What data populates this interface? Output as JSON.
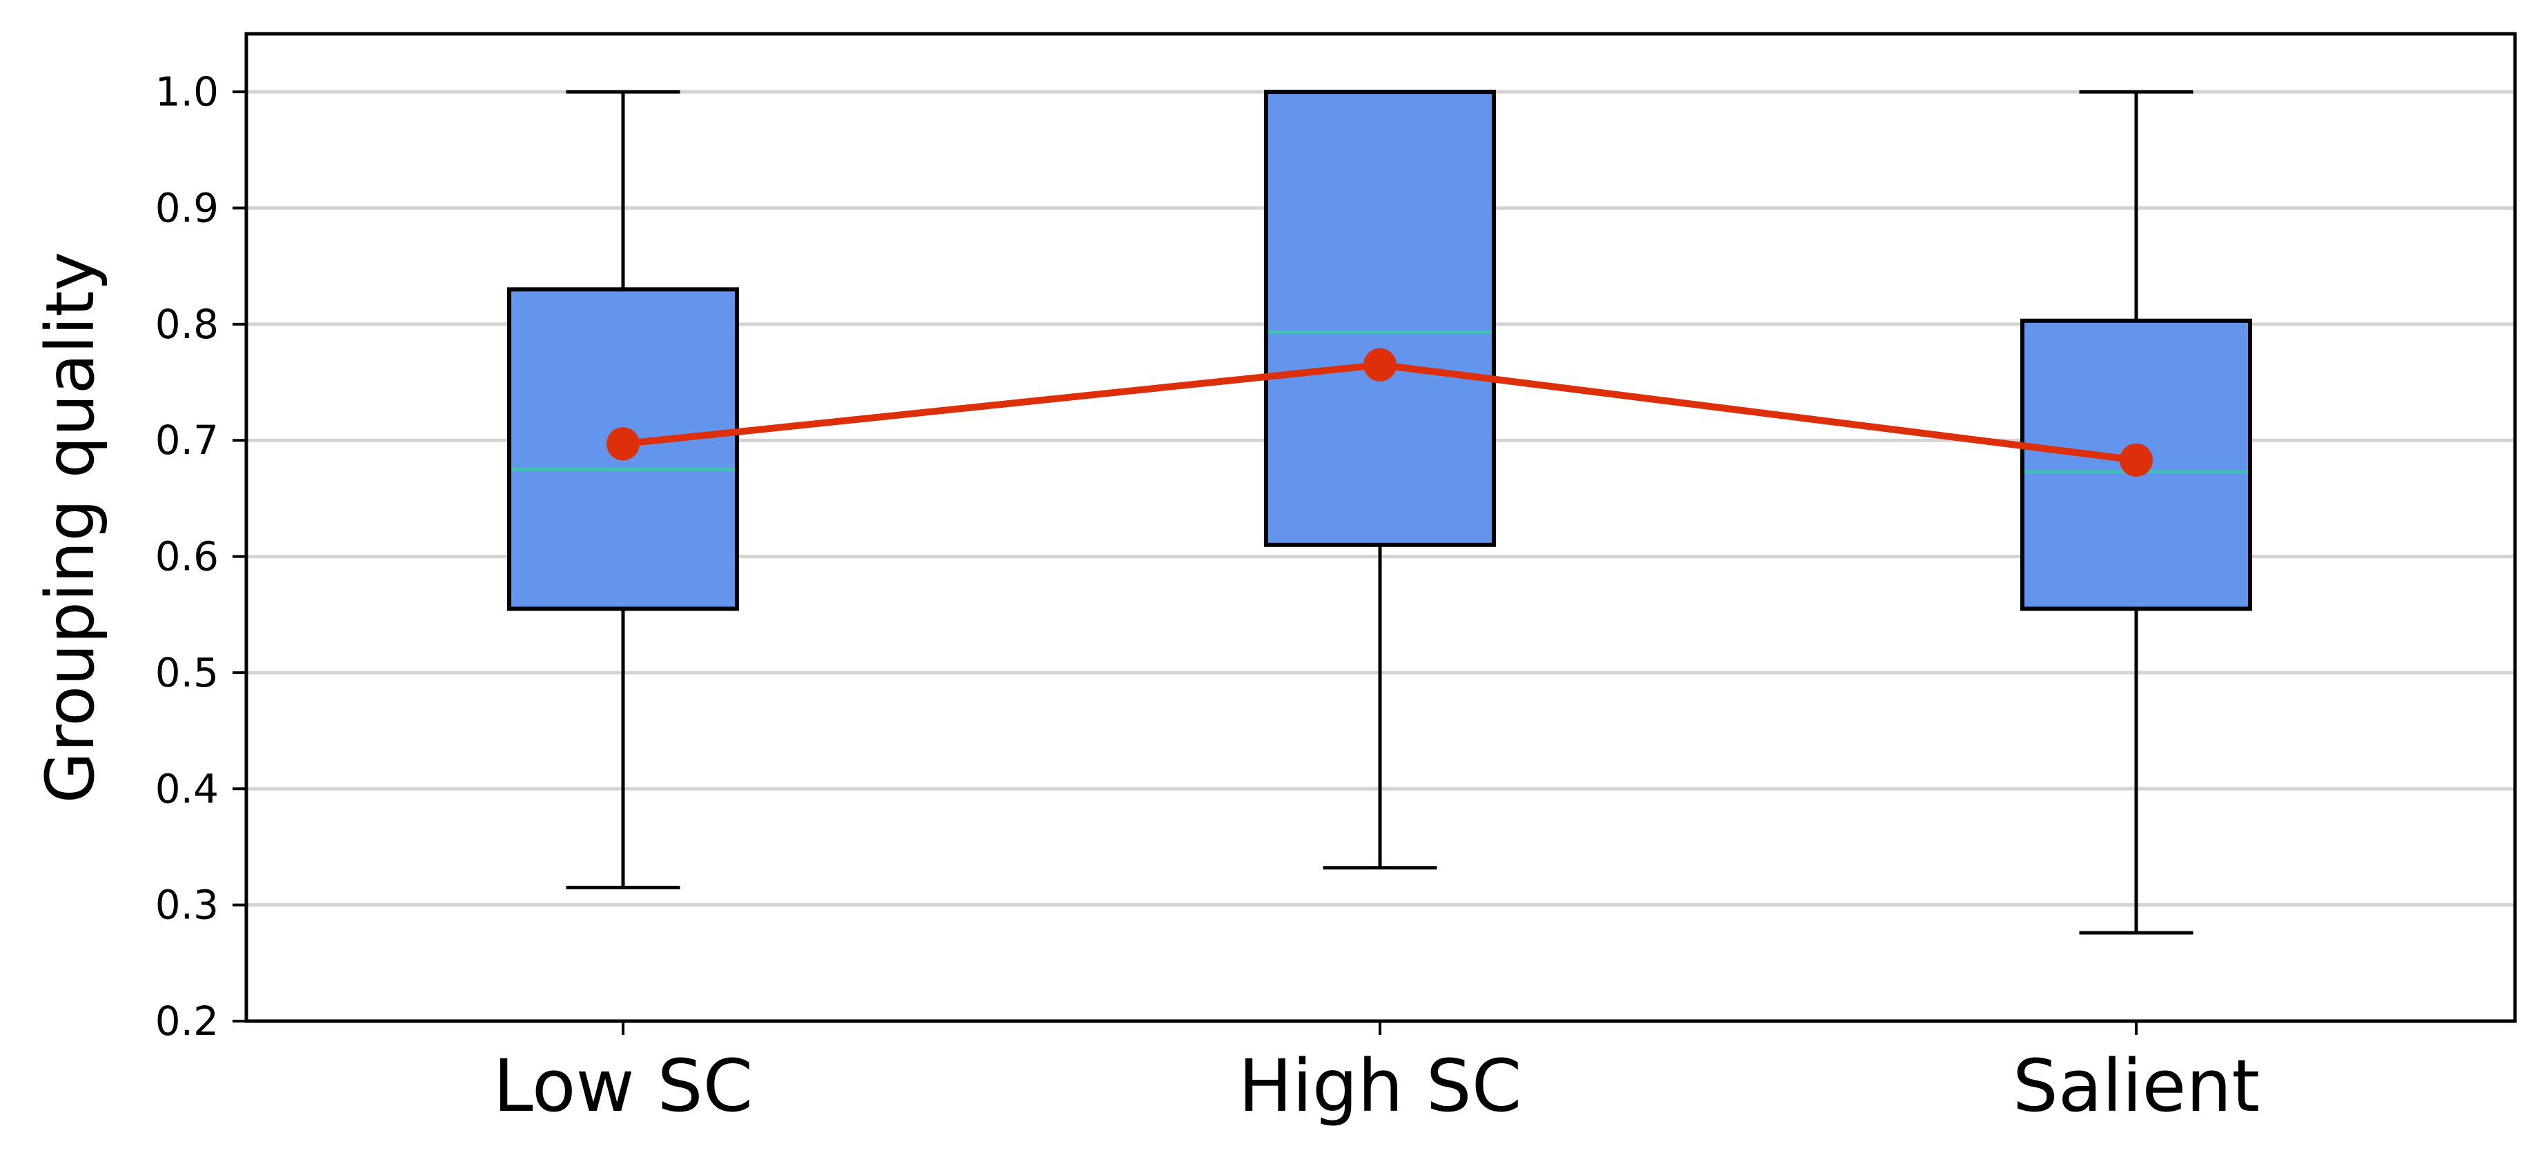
{
  "chart_data": {
    "type": "box",
    "title": "",
    "xlabel": "",
    "ylabel": "Grouping quality",
    "ylim": [
      0.2,
      1.05
    ],
    "yticks": [
      0.2,
      0.3,
      0.4,
      0.5,
      0.6,
      0.7,
      0.8,
      0.9,
      1.0
    ],
    "ytick_labels": [
      "0.2",
      "0.3",
      "0.4",
      "0.5",
      "0.6",
      "0.7",
      "0.8",
      "0.9",
      "1.0"
    ],
    "grid": "horizontal",
    "legend": "none",
    "categories": [
      "Low SC",
      "High SC",
      "Salient"
    ],
    "boxes": [
      {
        "whisker_low": 0.315,
        "q1": 0.555,
        "median": 0.675,
        "q3": 0.83,
        "whisker_high": 1.0
      },
      {
        "whisker_low": 0.332,
        "q1": 0.61,
        "median": 0.793,
        "q3": 1.0,
        "whisker_high": 1.0
      },
      {
        "whisker_low": 0.276,
        "q1": 0.555,
        "median": 0.673,
        "q3": 0.803,
        "whisker_high": 1.0
      }
    ],
    "means": [
      0.697,
      0.765,
      0.683
    ],
    "colors": {
      "box_fill": "#6495ED",
      "box_edge": "#000000",
      "median": "#40C0B0",
      "mean_line": "#DC2F0A",
      "grid": "#D3D3D3"
    }
  }
}
